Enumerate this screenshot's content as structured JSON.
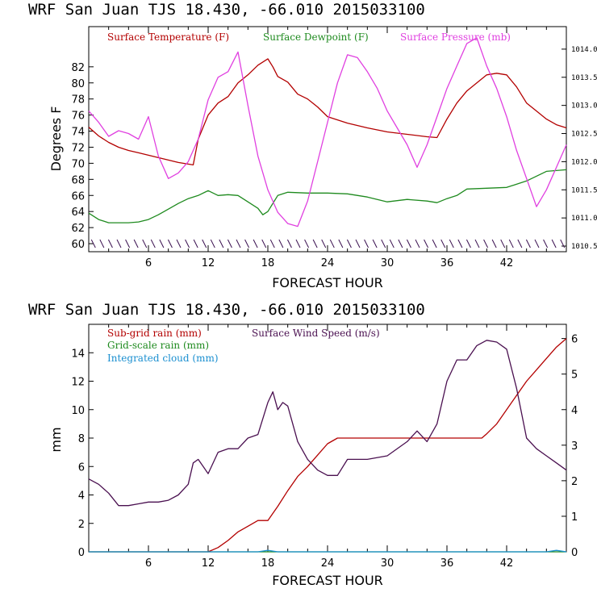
{
  "chart_data": [
    {
      "type": "line",
      "title": "WRF  San Juan TJS  18.430, -66.010  2015033100",
      "xlabel": "FORECAST HOUR",
      "ylabel": "Degrees F",
      "xlim": [
        0,
        48
      ],
      "ylim": [
        59,
        87
      ],
      "y2lim": [
        1010.4,
        1014.4
      ],
      "x_ticks": [
        6,
        12,
        18,
        24,
        30,
        36,
        42
      ],
      "x_tick_labels": [
        "6",
        "12",
        "18",
        "24",
        "30",
        "36",
        "42"
      ],
      "y_ticks": [
        60,
        62,
        64,
        66,
        68,
        70,
        72,
        74,
        76,
        78,
        80,
        82
      ],
      "y_tick_labels": [
        "60",
        "62",
        "64",
        "66",
        "68",
        "70",
        "72",
        "74",
        "76",
        "78",
        "80",
        "82"
      ],
      "y2_ticks": [
        1010.5,
        1011.0,
        1011.5,
        1012.0,
        1012.5,
        1013.0,
        1013.5,
        1014.0
      ],
      "y2_tick_labels": [
        "1010.5",
        "1011.0",
        "1011.5",
        "1012.0",
        "1012.5",
        "1013.0",
        "1013.5",
        "1014.0"
      ],
      "legend_position": "top",
      "wind_barbs": {
        "y": 60,
        "count": 56
      },
      "series": [
        {
          "name": "Surface Temperature (F)",
          "color": "#b30000",
          "axis": "left",
          "x": [
            0,
            1,
            2,
            3,
            4,
            5,
            6,
            7,
            8,
            9,
            10,
            10.5,
            11,
            12,
            13,
            14,
            15,
            16,
            17,
            18,
            18.5,
            19,
            20,
            21,
            22,
            23,
            24,
            26,
            28,
            30,
            32,
            34,
            35,
            36,
            37,
            38,
            39,
            40,
            41,
            42,
            43,
            44,
            45,
            46,
            47,
            48
          ],
          "y": [
            74.5,
            73.4,
            72.6,
            72.0,
            71.6,
            71.3,
            71.0,
            70.7,
            70.4,
            70.1,
            69.9,
            69.8,
            73.0,
            76.0,
            77.5,
            78.3,
            80.0,
            81.0,
            82.2,
            83.0,
            82.0,
            80.8,
            80.1,
            78.6,
            78.0,
            77.0,
            75.8,
            75.0,
            74.4,
            73.9,
            73.6,
            73.3,
            73.2,
            75.5,
            77.5,
            79.0,
            80.0,
            81.0,
            81.2,
            81.0,
            79.5,
            77.5,
            76.5,
            75.5,
            74.8,
            74.4
          ]
        },
        {
          "name": "Surface Dewpoint (F)",
          "color": "#1e8a1e",
          "axis": "left",
          "x": [
            0,
            1,
            2,
            3,
            4,
            5,
            6,
            7,
            8,
            9,
            10,
            11,
            12,
            13,
            14,
            15,
            16,
            17,
            17.5,
            18,
            19,
            20,
            22,
            24,
            26,
            28,
            30,
            32,
            34,
            35,
            36,
            37,
            38,
            40,
            42,
            44,
            46,
            48
          ],
          "y": [
            63.8,
            63.0,
            62.6,
            62.6,
            62.6,
            62.7,
            63.0,
            63.6,
            64.3,
            65.0,
            65.6,
            66.0,
            66.6,
            66.0,
            66.1,
            66.0,
            65.2,
            64.4,
            63.6,
            64.0,
            66.0,
            66.4,
            66.3,
            66.3,
            66.2,
            65.8,
            65.2,
            65.5,
            65.3,
            65.1,
            65.6,
            66.0,
            66.8,
            66.9,
            67.0,
            67.8,
            69.0,
            69.2
          ]
        },
        {
          "name": "Surface Pressure (mb)",
          "color": "#e040e0",
          "axis": "right",
          "x": [
            0,
            1,
            2,
            3,
            4,
            5,
            6,
            7,
            8,
            9,
            10,
            11,
            12,
            13,
            14,
            15,
            16,
            17,
            18,
            19,
            20,
            21,
            22,
            23,
            24,
            25,
            26,
            27,
            28,
            29,
            30,
            31,
            32,
            33,
            34,
            35,
            36,
            37,
            38,
            39,
            40,
            41,
            42,
            43,
            44,
            45,
            46,
            47,
            48
          ],
          "y": [
            1012.9,
            1012.7,
            1012.45,
            1012.55,
            1012.5,
            1012.4,
            1012.8,
            1012.1,
            1011.7,
            1011.8,
            1012.0,
            1012.4,
            1013.1,
            1013.5,
            1013.6,
            1013.95,
            1013.0,
            1012.1,
            1011.5,
            1011.1,
            1010.9,
            1010.85,
            1011.3,
            1012.0,
            1012.7,
            1013.4,
            1013.9,
            1013.85,
            1013.6,
            1013.3,
            1012.9,
            1012.6,
            1012.3,
            1011.9,
            1012.3,
            1012.8,
            1013.3,
            1013.7,
            1014.1,
            1014.2,
            1013.7,
            1013.3,
            1012.8,
            1012.2,
            1011.7,
            1011.2,
            1011.5,
            1011.9,
            1012.3
          ]
        }
      ]
    },
    {
      "type": "line",
      "title": "WRF  San Juan TJS  18.430, -66.010  2015033100",
      "xlabel": "FORECAST HOUR",
      "ylabel": "mm",
      "xlim": [
        0,
        48
      ],
      "ylim": [
        0,
        16
      ],
      "y2lim": [
        0,
        6.4
      ],
      "x_ticks": [
        6,
        12,
        18,
        24,
        30,
        36,
        42
      ],
      "x_tick_labels": [
        "6",
        "12",
        "18",
        "24",
        "30",
        "36",
        "42"
      ],
      "y_ticks": [
        0,
        2,
        4,
        6,
        8,
        10,
        12,
        14
      ],
      "y_tick_labels": [
        "0",
        "2",
        "4",
        "6",
        "8",
        "10",
        "12",
        "14"
      ],
      "y2_ticks": [
        0,
        1,
        2,
        3,
        4,
        5,
        6
      ],
      "y2_tick_labels": [
        "0",
        "1",
        "2",
        "3",
        "4",
        "5",
        "6"
      ],
      "legend_position": "top",
      "series": [
        {
          "name": "Sub-grid rain (mm)",
          "color": "#b30000",
          "axis": "left",
          "x": [
            0,
            12,
            13,
            14,
            15,
            16,
            17,
            18,
            19,
            20,
            21,
            22,
            23,
            24,
            25,
            30,
            36,
            39.5,
            40,
            41,
            42,
            43,
            44,
            45,
            46,
            47,
            48
          ],
          "y": [
            0,
            0,
            0.3,
            0.8,
            1.4,
            1.8,
            2.2,
            2.2,
            3.2,
            4.3,
            5.3,
            6.0,
            6.8,
            7.6,
            8.0,
            8.0,
            8.0,
            8.0,
            8.3,
            9.0,
            10.0,
            11.0,
            12.0,
            12.8,
            13.6,
            14.4,
            15.0
          ]
        },
        {
          "name": "Grid-scale rain (mm)",
          "color": "#1e8a1e",
          "axis": "left",
          "x": [
            0,
            48
          ],
          "y": [
            0,
            0
          ]
        },
        {
          "name": "Integrated cloud (mm)",
          "color": "#1a8fd0",
          "axis": "left",
          "x": [
            0,
            17,
            18,
            19,
            46,
            47,
            48
          ],
          "y": [
            0,
            0,
            0.1,
            0,
            0,
            0.1,
            0
          ]
        },
        {
          "name": "Surface Wind Speed (m/s)",
          "color": "#4a1050",
          "axis": "right",
          "x": [
            0,
            1,
            2,
            3,
            4,
            5,
            6,
            7,
            8,
            9,
            10,
            10.5,
            11,
            12,
            13,
            14,
            15,
            16,
            17,
            18,
            18.5,
            19,
            19.5,
            20,
            21,
            22,
            23,
            24,
            25,
            26,
            27,
            28,
            30,
            32,
            33,
            34,
            35,
            36,
            37,
            38,
            39,
            40,
            41,
            42,
            43,
            44,
            45,
            46,
            47,
            48
          ],
          "y": [
            2.05,
            1.9,
            1.65,
            1.3,
            1.3,
            1.35,
            1.4,
            1.4,
            1.45,
            1.6,
            1.9,
            2.5,
            2.6,
            2.2,
            2.8,
            2.9,
            2.9,
            3.2,
            3.3,
            4.2,
            4.5,
            4.0,
            4.2,
            4.1,
            3.1,
            2.6,
            2.3,
            2.15,
            2.15,
            2.6,
            2.6,
            2.6,
            2.7,
            3.1,
            3.4,
            3.1,
            3.6,
            4.8,
            5.4,
            5.4,
            5.8,
            5.95,
            5.9,
            5.7,
            4.6,
            3.2,
            2.9,
            2.7,
            2.5,
            2.3
          ]
        }
      ]
    }
  ]
}
